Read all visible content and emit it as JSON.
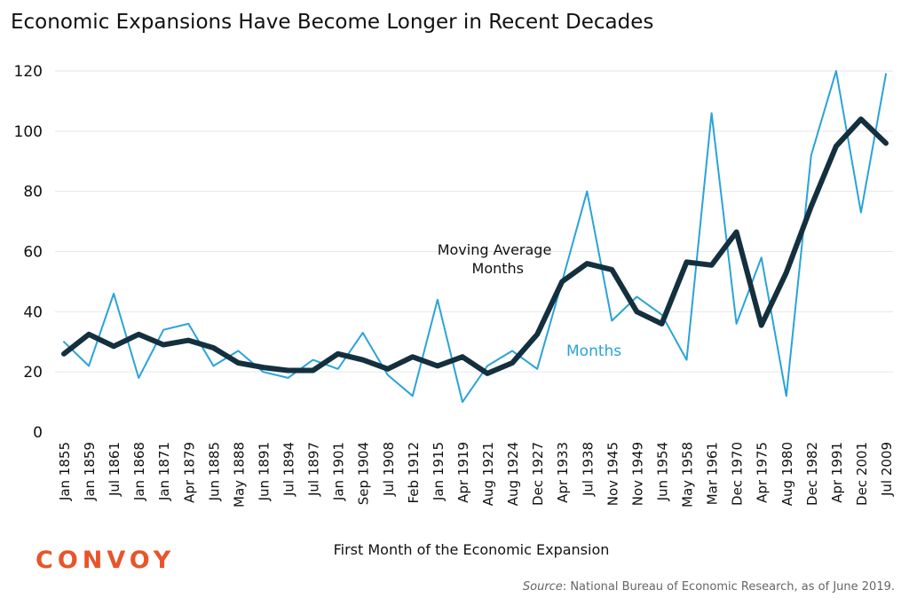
{
  "chart_data": {
    "type": "line",
    "title": "Economic Expansions Have Become Longer in Recent Decades",
    "xlabel": "First Month of the Economic Expansion",
    "ylabel": "",
    "ylim": [
      0,
      120
    ],
    "yticks": [
      0,
      20,
      40,
      60,
      80,
      100,
      120
    ],
    "grid": true,
    "categories": [
      "Jan 1855",
      "Jan 1859",
      "Jul 1861",
      "Jan 1868",
      "Jan 1871",
      "Apr 1879",
      "Jun 1885",
      "May 1888",
      "Jun 1891",
      "Jul 1894",
      "Jul 1897",
      "Jan 1901",
      "Sep 1904",
      "Jul 1908",
      "Feb 1912",
      "Jan 1915",
      "Apr 1919",
      "Aug 1921",
      "Aug 1924",
      "Dec 1927",
      "Apr 1933",
      "Jul 1938",
      "Nov 1945",
      "Nov 1949",
      "Jun 1954",
      "May 1958",
      "Mar 1961",
      "Dec 1970",
      "Apr 1975",
      "Aug 1980",
      "Dec 1982",
      "Apr 1991",
      "Dec 2001",
      "Jul 2009"
    ],
    "series": [
      {
        "name": "Months",
        "color": "#2aa3d9",
        "values": [
          30,
          22,
          46,
          18,
          34,
          36,
          22,
          27,
          20,
          18,
          24,
          21,
          33,
          19,
          12,
          44,
          10,
          22,
          27,
          21,
          50,
          80,
          37,
          45,
          39,
          24,
          106,
          36,
          58,
          12,
          92,
          120,
          73,
          119
        ]
      },
      {
        "name": "Moving Average Months",
        "color": "#14303f",
        "values": [
          26,
          32.5,
          28.5,
          32.5,
          29,
          30.5,
          28,
          23,
          21.5,
          20.5,
          20.5,
          26,
          24,
          21,
          25,
          22,
          25,
          19.5,
          23,
          32.5,
          50,
          56,
          54,
          40,
          36,
          56.5,
          55.5,
          66.5,
          35.5,
          53,
          75,
          95,
          104,
          96
        ]
      }
    ],
    "annotations": [
      {
        "text": "Moving Average",
        "series": "Moving Average Months"
      },
      {
        "text": "Months",
        "series": "Moving Average Months"
      },
      {
        "text": "Months",
        "series": "Months"
      }
    ]
  },
  "branding": {
    "logo_text": "CONVOY",
    "logo_color": "#e8552a"
  },
  "footer": {
    "source_label": "Source",
    "source_text": ": National Bureau of Economic Research, as of June 2019."
  }
}
